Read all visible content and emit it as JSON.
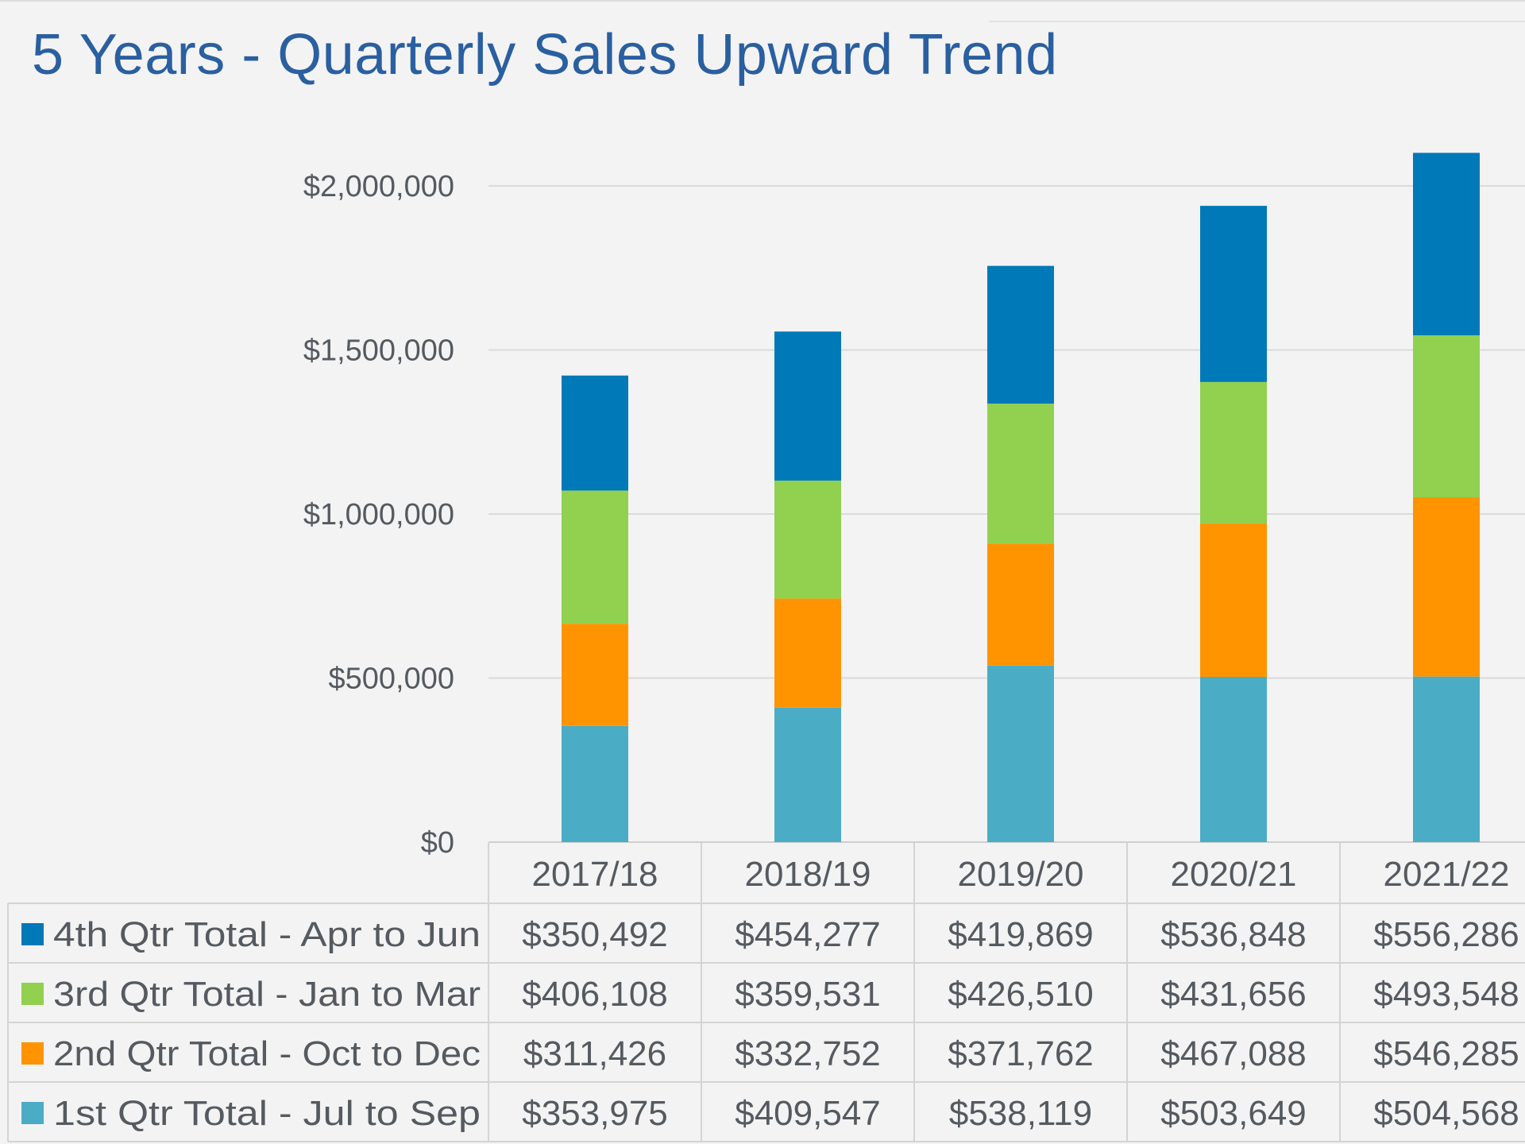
{
  "chart_data": {
    "type": "bar",
    "stacked": true,
    "title": "5 Years - Quarterly Sales Upward Trend",
    "categories": [
      "2017/18",
      "2018/19",
      "2019/20",
      "2020/21",
      "2021/22"
    ],
    "ylim": [
      0,
      2000000
    ],
    "yticks": [
      {
        "value": 0,
        "label": "$0"
      },
      {
        "value": 500000,
        "label": "$500,000"
      },
      {
        "value": 1000000,
        "label": "$1,000,000"
      },
      {
        "value": 1500000,
        "label": "$1,500,000"
      },
      {
        "value": 2000000,
        "label": "$2,000,000"
      }
    ],
    "grid": true,
    "legend": "data-table-bottom",
    "series": [
      {
        "name": "1st Qtr Total - Jul to Sep",
        "color": "#4bacc6",
        "values": [
          353975,
          409547,
          538119,
          503649,
          504568
        ],
        "labels": [
          "$353,975",
          "$409,547",
          "$538,119",
          "$503,649",
          "$504,568"
        ]
      },
      {
        "name": "2nd Qtr Total - Oct to Dec",
        "color": "#ff9400",
        "values": [
          311426,
          332752,
          371762,
          467088,
          546285
        ],
        "labels": [
          "$311,426",
          "$332,752",
          "$371,762",
          "$467,088",
          "$546,285"
        ]
      },
      {
        "name": "3rd Qtr Total - Jan to Mar",
        "color": "#92d050",
        "values": [
          406108,
          359531,
          426510,
          431656,
          493548
        ],
        "labels": [
          "$406,108",
          "$359,531",
          "$426,510",
          "$431,656",
          "$493,548"
        ]
      },
      {
        "name": "4th Qtr Total - Apr to Jun",
        "color": "#0079b8",
        "values": [
          350492,
          454277,
          419869,
          536848,
          556286
        ],
        "labels": [
          "$350,492",
          "$454,277",
          "$419,869",
          "$536,848",
          "$556,286"
        ]
      }
    ]
  }
}
